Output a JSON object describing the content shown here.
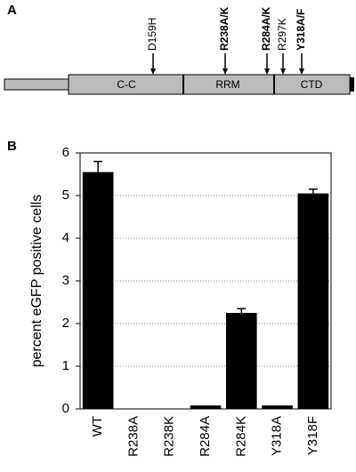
{
  "diagram": {
    "panel_label": "A",
    "domains": [
      "C-C",
      "RRM",
      "CTD"
    ],
    "mutations": [
      {
        "label": "D159H",
        "bold": false
      },
      {
        "label": "R238A/K",
        "bold": true
      },
      {
        "label": "R284A/K",
        "bold": true
      },
      {
        "label": "R297K",
        "bold": false
      },
      {
        "label": "Y318A/F",
        "bold": true
      }
    ]
  },
  "chart_data": {
    "type": "bar",
    "panel_label": "B",
    "y_label": "percent eGFP positive cells",
    "categories": [
      "WT",
      "R238A",
      "R238K",
      "R284A",
      "R284K",
      "Y318A",
      "Y318F"
    ],
    "values": [
      5.55,
      0,
      0,
      0.08,
      2.25,
      0.08,
      5.05
    ],
    "errors": [
      0.25,
      null,
      null,
      null,
      0.1,
      null,
      0.1
    ],
    "color": "#000000",
    "ylim": [
      0,
      6
    ],
    "yticks": [
      0,
      1,
      2,
      3,
      4,
      5,
      6
    ],
    "grid": true
  }
}
